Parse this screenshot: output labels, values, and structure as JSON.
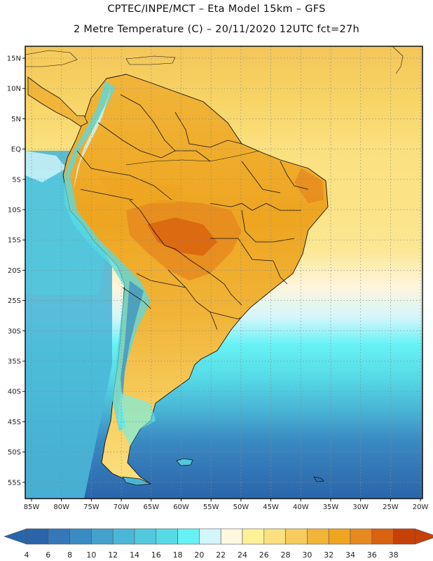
{
  "header": {
    "line1": "CPTEC/INPE/MCT –  Eta Model 15km – GFS",
    "line2": "2 Metre Temperature (C) – 20/11/2020 12UTC fct=27h"
  },
  "map": {
    "lat_labels": [
      "15N",
      "10N",
      "5N",
      "EQ",
      "5S",
      "10S",
      "15S",
      "20S",
      "25S",
      "30S",
      "35S",
      "40S",
      "45S",
      "50S",
      "55S"
    ],
    "lon_labels": [
      "85W",
      "80W",
      "75W",
      "70W",
      "65W",
      "60W",
      "55W",
      "50W",
      "45W",
      "40W",
      "35W",
      "30W",
      "25W",
      "20W"
    ]
  },
  "colorbar": {
    "labels": [
      "4",
      "6",
      "8",
      "10",
      "12",
      "14",
      "16",
      "18",
      "20",
      "22",
      "24",
      "26",
      "28",
      "30",
      "32",
      "34",
      "36",
      "38"
    ],
    "colors": [
      "#2a65ab",
      "#3478b7",
      "#3a8bc2",
      "#42a2cc",
      "#4ab7d6",
      "#52c8dd",
      "#56dbe6",
      "#66f2f5",
      "#d3f6fb",
      "#fff7df",
      "#fff199",
      "#fbe07f",
      "#f6cc5c",
      "#f1b53a",
      "#eea520",
      "#e68a1f",
      "#d8620e",
      "#c5410a"
    ],
    "low_arrow_color": "#2a65ab",
    "high_arrow_color": "#c5410a"
  }
}
